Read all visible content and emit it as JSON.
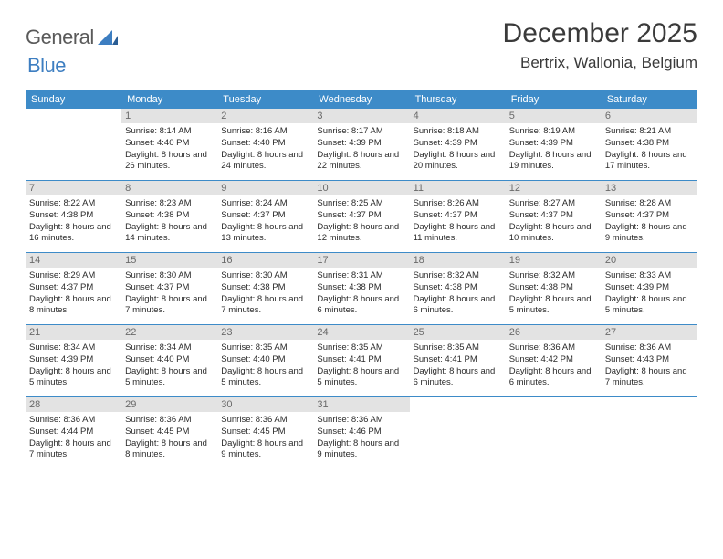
{
  "logo": {
    "text1": "General",
    "text2": "Blue",
    "shape_color": "#3d7ec1",
    "text_color": "#5a5a5a"
  },
  "title": "December 2025",
  "location": "Bertrix, Wallonia, Belgium",
  "colors": {
    "header_bg": "#3d8bc8",
    "header_text": "#ffffff",
    "daynum_bg": "#e3e3e3",
    "daynum_text": "#6a6a6a",
    "body_text": "#2a2a2a",
    "rule": "#3d8bc8"
  },
  "day_names": [
    "Sunday",
    "Monday",
    "Tuesday",
    "Wednesday",
    "Thursday",
    "Friday",
    "Saturday"
  ],
  "weeks": [
    [
      {
        "n": "",
        "sunrise": "",
        "sunset": "",
        "daylight": ""
      },
      {
        "n": "1",
        "sunrise": "Sunrise: 8:14 AM",
        "sunset": "Sunset: 4:40 PM",
        "daylight": "Daylight: 8 hours and 26 minutes."
      },
      {
        "n": "2",
        "sunrise": "Sunrise: 8:16 AM",
        "sunset": "Sunset: 4:40 PM",
        "daylight": "Daylight: 8 hours and 24 minutes."
      },
      {
        "n": "3",
        "sunrise": "Sunrise: 8:17 AM",
        "sunset": "Sunset: 4:39 PM",
        "daylight": "Daylight: 8 hours and 22 minutes."
      },
      {
        "n": "4",
        "sunrise": "Sunrise: 8:18 AM",
        "sunset": "Sunset: 4:39 PM",
        "daylight": "Daylight: 8 hours and 20 minutes."
      },
      {
        "n": "5",
        "sunrise": "Sunrise: 8:19 AM",
        "sunset": "Sunset: 4:39 PM",
        "daylight": "Daylight: 8 hours and 19 minutes."
      },
      {
        "n": "6",
        "sunrise": "Sunrise: 8:21 AM",
        "sunset": "Sunset: 4:38 PM",
        "daylight": "Daylight: 8 hours and 17 minutes."
      }
    ],
    [
      {
        "n": "7",
        "sunrise": "Sunrise: 8:22 AM",
        "sunset": "Sunset: 4:38 PM",
        "daylight": "Daylight: 8 hours and 16 minutes."
      },
      {
        "n": "8",
        "sunrise": "Sunrise: 8:23 AM",
        "sunset": "Sunset: 4:38 PM",
        "daylight": "Daylight: 8 hours and 14 minutes."
      },
      {
        "n": "9",
        "sunrise": "Sunrise: 8:24 AM",
        "sunset": "Sunset: 4:37 PM",
        "daylight": "Daylight: 8 hours and 13 minutes."
      },
      {
        "n": "10",
        "sunrise": "Sunrise: 8:25 AM",
        "sunset": "Sunset: 4:37 PM",
        "daylight": "Daylight: 8 hours and 12 minutes."
      },
      {
        "n": "11",
        "sunrise": "Sunrise: 8:26 AM",
        "sunset": "Sunset: 4:37 PM",
        "daylight": "Daylight: 8 hours and 11 minutes."
      },
      {
        "n": "12",
        "sunrise": "Sunrise: 8:27 AM",
        "sunset": "Sunset: 4:37 PM",
        "daylight": "Daylight: 8 hours and 10 minutes."
      },
      {
        "n": "13",
        "sunrise": "Sunrise: 8:28 AM",
        "sunset": "Sunset: 4:37 PM",
        "daylight": "Daylight: 8 hours and 9 minutes."
      }
    ],
    [
      {
        "n": "14",
        "sunrise": "Sunrise: 8:29 AM",
        "sunset": "Sunset: 4:37 PM",
        "daylight": "Daylight: 8 hours and 8 minutes."
      },
      {
        "n": "15",
        "sunrise": "Sunrise: 8:30 AM",
        "sunset": "Sunset: 4:37 PM",
        "daylight": "Daylight: 8 hours and 7 minutes."
      },
      {
        "n": "16",
        "sunrise": "Sunrise: 8:30 AM",
        "sunset": "Sunset: 4:38 PM",
        "daylight": "Daylight: 8 hours and 7 minutes."
      },
      {
        "n": "17",
        "sunrise": "Sunrise: 8:31 AM",
        "sunset": "Sunset: 4:38 PM",
        "daylight": "Daylight: 8 hours and 6 minutes."
      },
      {
        "n": "18",
        "sunrise": "Sunrise: 8:32 AM",
        "sunset": "Sunset: 4:38 PM",
        "daylight": "Daylight: 8 hours and 6 minutes."
      },
      {
        "n": "19",
        "sunrise": "Sunrise: 8:32 AM",
        "sunset": "Sunset: 4:38 PM",
        "daylight": "Daylight: 8 hours and 5 minutes."
      },
      {
        "n": "20",
        "sunrise": "Sunrise: 8:33 AM",
        "sunset": "Sunset: 4:39 PM",
        "daylight": "Daylight: 8 hours and 5 minutes."
      }
    ],
    [
      {
        "n": "21",
        "sunrise": "Sunrise: 8:34 AM",
        "sunset": "Sunset: 4:39 PM",
        "daylight": "Daylight: 8 hours and 5 minutes."
      },
      {
        "n": "22",
        "sunrise": "Sunrise: 8:34 AM",
        "sunset": "Sunset: 4:40 PM",
        "daylight": "Daylight: 8 hours and 5 minutes."
      },
      {
        "n": "23",
        "sunrise": "Sunrise: 8:35 AM",
        "sunset": "Sunset: 4:40 PM",
        "daylight": "Daylight: 8 hours and 5 minutes."
      },
      {
        "n": "24",
        "sunrise": "Sunrise: 8:35 AM",
        "sunset": "Sunset: 4:41 PM",
        "daylight": "Daylight: 8 hours and 5 minutes."
      },
      {
        "n": "25",
        "sunrise": "Sunrise: 8:35 AM",
        "sunset": "Sunset: 4:41 PM",
        "daylight": "Daylight: 8 hours and 6 minutes."
      },
      {
        "n": "26",
        "sunrise": "Sunrise: 8:36 AM",
        "sunset": "Sunset: 4:42 PM",
        "daylight": "Daylight: 8 hours and 6 minutes."
      },
      {
        "n": "27",
        "sunrise": "Sunrise: 8:36 AM",
        "sunset": "Sunset: 4:43 PM",
        "daylight": "Daylight: 8 hours and 7 minutes."
      }
    ],
    [
      {
        "n": "28",
        "sunrise": "Sunrise: 8:36 AM",
        "sunset": "Sunset: 4:44 PM",
        "daylight": "Daylight: 8 hours and 7 minutes."
      },
      {
        "n": "29",
        "sunrise": "Sunrise: 8:36 AM",
        "sunset": "Sunset: 4:45 PM",
        "daylight": "Daylight: 8 hours and 8 minutes."
      },
      {
        "n": "30",
        "sunrise": "Sunrise: 8:36 AM",
        "sunset": "Sunset: 4:45 PM",
        "daylight": "Daylight: 8 hours and 9 minutes."
      },
      {
        "n": "31",
        "sunrise": "Sunrise: 8:36 AM",
        "sunset": "Sunset: 4:46 PM",
        "daylight": "Daylight: 8 hours and 9 minutes."
      },
      {
        "n": "",
        "sunrise": "",
        "sunset": "",
        "daylight": ""
      },
      {
        "n": "",
        "sunrise": "",
        "sunset": "",
        "daylight": ""
      },
      {
        "n": "",
        "sunrise": "",
        "sunset": "",
        "daylight": ""
      }
    ]
  ]
}
